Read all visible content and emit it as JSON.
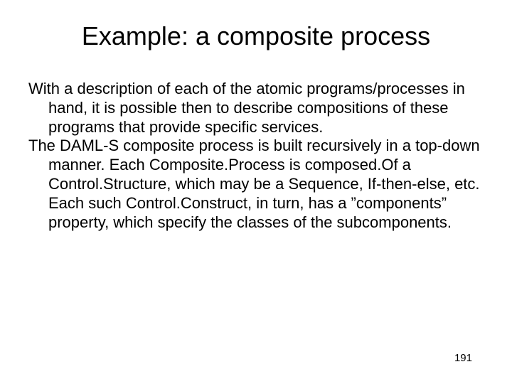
{
  "slide": {
    "title": "Example: a composite process",
    "paragraph1": "With a description of each of the atomic programs/processes in hand, it is possible then to describe compositions of these programs that provide specific services.",
    "paragraph2": "The DAML-S composite process is built recursively in a top-down manner. Each Composite.Process is composed.Of a Control.Structure, which may be a Sequence, If-then-else, etc. Each such Control.Construct, in turn, has a ”components” property, which specify the classes of the subcomponents.",
    "page_number": "191"
  },
  "style": {
    "background_color": "#ffffff",
    "text_color": "#000000",
    "title_fontsize": 36,
    "body_fontsize": 22,
    "pagenum_fontsize": 15,
    "font_family": "Arial"
  }
}
